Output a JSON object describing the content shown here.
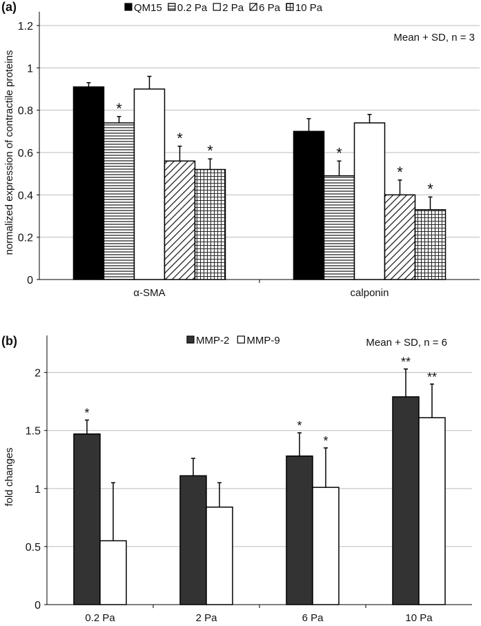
{
  "chart_data": [
    {
      "type": "bar",
      "panel_label": "(a)",
      "annotation": "Mean + SD, n = 3",
      "ylabel": "normalized expression of contractile proteins",
      "xlabel": "",
      "ylim": [
        0,
        1.2
      ],
      "yticks": [
        "0",
        "0.2",
        "0.4",
        "0.6",
        "0.8",
        "1",
        "1.2"
      ],
      "ytick_values": [
        0,
        0.2,
        0.4,
        0.6,
        0.8,
        1,
        1.2
      ],
      "grid": true,
      "legend_position": "top-center",
      "categories": [
        "α-SMA",
        "calponin"
      ],
      "series": [
        {
          "name": "QM15",
          "pattern": "solid-black",
          "values": [
            0.91,
            0.7
          ],
          "sd": [
            0.02,
            0.06
          ],
          "sig": [
            "",
            ""
          ]
        },
        {
          "name": "0.2 Pa",
          "pattern": "horizontal",
          "values": [
            0.74,
            0.49
          ],
          "sd": [
            0.03,
            0.07
          ],
          "sig": [
            "*",
            "*"
          ]
        },
        {
          "name": "2 Pa",
          "pattern": "white",
          "values": [
            0.9,
            0.74
          ],
          "sd": [
            0.06,
            0.04
          ],
          "sig": [
            "",
            ""
          ]
        },
        {
          "name": "6 Pa",
          "pattern": "diagonal",
          "values": [
            0.56,
            0.4
          ],
          "sd": [
            0.07,
            0.07
          ],
          "sig": [
            "*",
            "*"
          ]
        },
        {
          "name": "10 Pa",
          "pattern": "grid",
          "values": [
            0.52,
            0.33
          ],
          "sd": [
            0.05,
            0.06
          ],
          "sig": [
            "*",
            "*"
          ]
        }
      ]
    },
    {
      "type": "bar",
      "panel_label": "(b)",
      "annotation": "Mean + SD, n = 6",
      "ylabel": "fold changes",
      "xlabel": "",
      "ylim": [
        0,
        2.2
      ],
      "yticks": [
        "0",
        "0.5",
        "1",
        "1.5",
        "2"
      ],
      "ytick_values": [
        0,
        0.5,
        1,
        1.5,
        2
      ],
      "grid": true,
      "legend_position": "top-center",
      "categories": [
        "0.2 Pa",
        "2 Pa",
        "6 Pa",
        "10 Pa"
      ],
      "series": [
        {
          "name": "MMP-2",
          "pattern": "solid-dark",
          "values": [
            1.47,
            1.11,
            1.28,
            1.79
          ],
          "sd": [
            0.12,
            0.15,
            0.2,
            0.24
          ],
          "sig": [
            "*",
            "",
            "*",
            "**"
          ]
        },
        {
          "name": "MMP-9",
          "pattern": "white",
          "values": [
            0.55,
            0.84,
            1.01,
            1.61
          ],
          "sd": [
            0.5,
            0.21,
            0.34,
            0.29
          ],
          "sig": [
            "",
            "",
            "*",
            "**"
          ]
        }
      ]
    }
  ]
}
